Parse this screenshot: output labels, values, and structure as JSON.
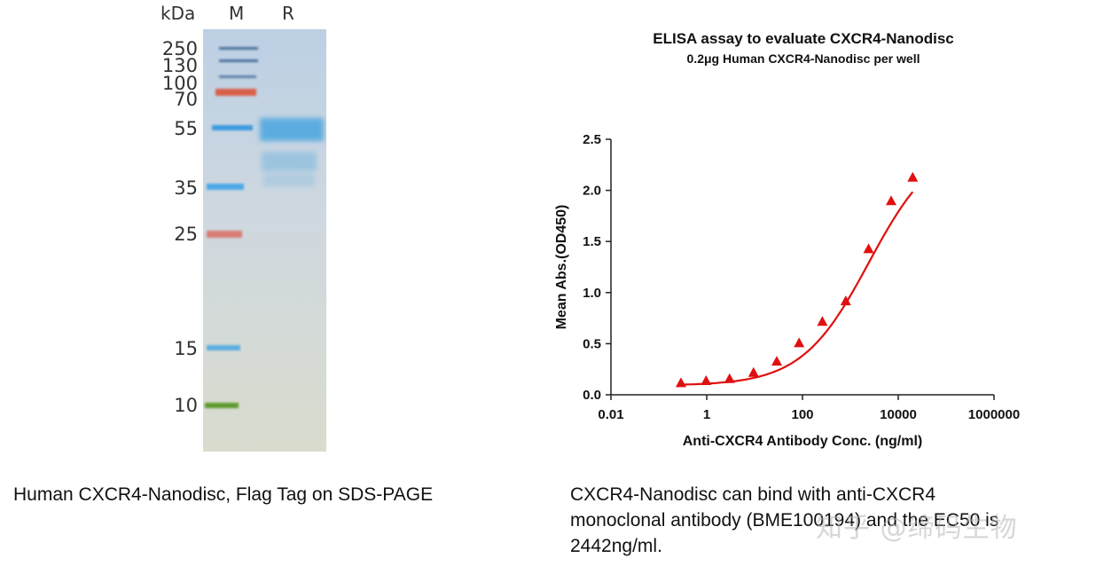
{
  "gel": {
    "header_kda": "kDa",
    "header_m": "M",
    "header_r": "R",
    "markers": [
      "250",
      "130",
      "100",
      "70",
      "55",
      "35",
      "25",
      "15",
      "10"
    ],
    "caption": "Human CXCR4-Nanodisc, Flag Tag on SDS-PAGE"
  },
  "chart_data": {
    "type": "scatter",
    "title": "ELISA assay to evaluate CXCR4-Nanodisc",
    "subtitle": "0.2μg Human CXCR4-Nanodisc per well",
    "xlabel": "Anti-CXCR4 Antibody Conc. (ng/ml)",
    "ylabel": "Mean Abs.(OD450)",
    "xscale": "log",
    "xlim": [
      0.01,
      1000000
    ],
    "ylim": [
      0,
      2.5
    ],
    "xticks": [
      "0.01",
      "1",
      "100",
      "10000",
      "1000000"
    ],
    "xtick_values": [
      0.01,
      1,
      100,
      10000,
      1000000
    ],
    "yticks": [
      "0.0",
      "0.5",
      "1.0",
      "1.5",
      "2.0",
      "2.5"
    ],
    "ytick_values": [
      0,
      0.5,
      1.0,
      1.5,
      2.0,
      2.5
    ],
    "marker": "triangle",
    "color": "#e01010",
    "series": [
      {
        "x": [
          0.29,
          0.97,
          3.0,
          9.5,
          29,
          85,
          260,
          800,
          2400,
          7100,
          20000
        ],
        "y": [
          0.11,
          0.13,
          0.15,
          0.21,
          0.32,
          0.5,
          0.71,
          0.91,
          1.42,
          1.89,
          2.12
        ]
      }
    ],
    "fit_curve": "4PL",
    "ec50": 2442,
    "grid": false
  },
  "chart_caption": {
    "line1": "CXCR4-Nanodisc can bind with anti-CXCR4",
    "line2": "monoclonal antibody (BME100194) and the EC50 is",
    "line3": "2442ng/ml."
  },
  "watermark": "知乎 @缔码生物"
}
